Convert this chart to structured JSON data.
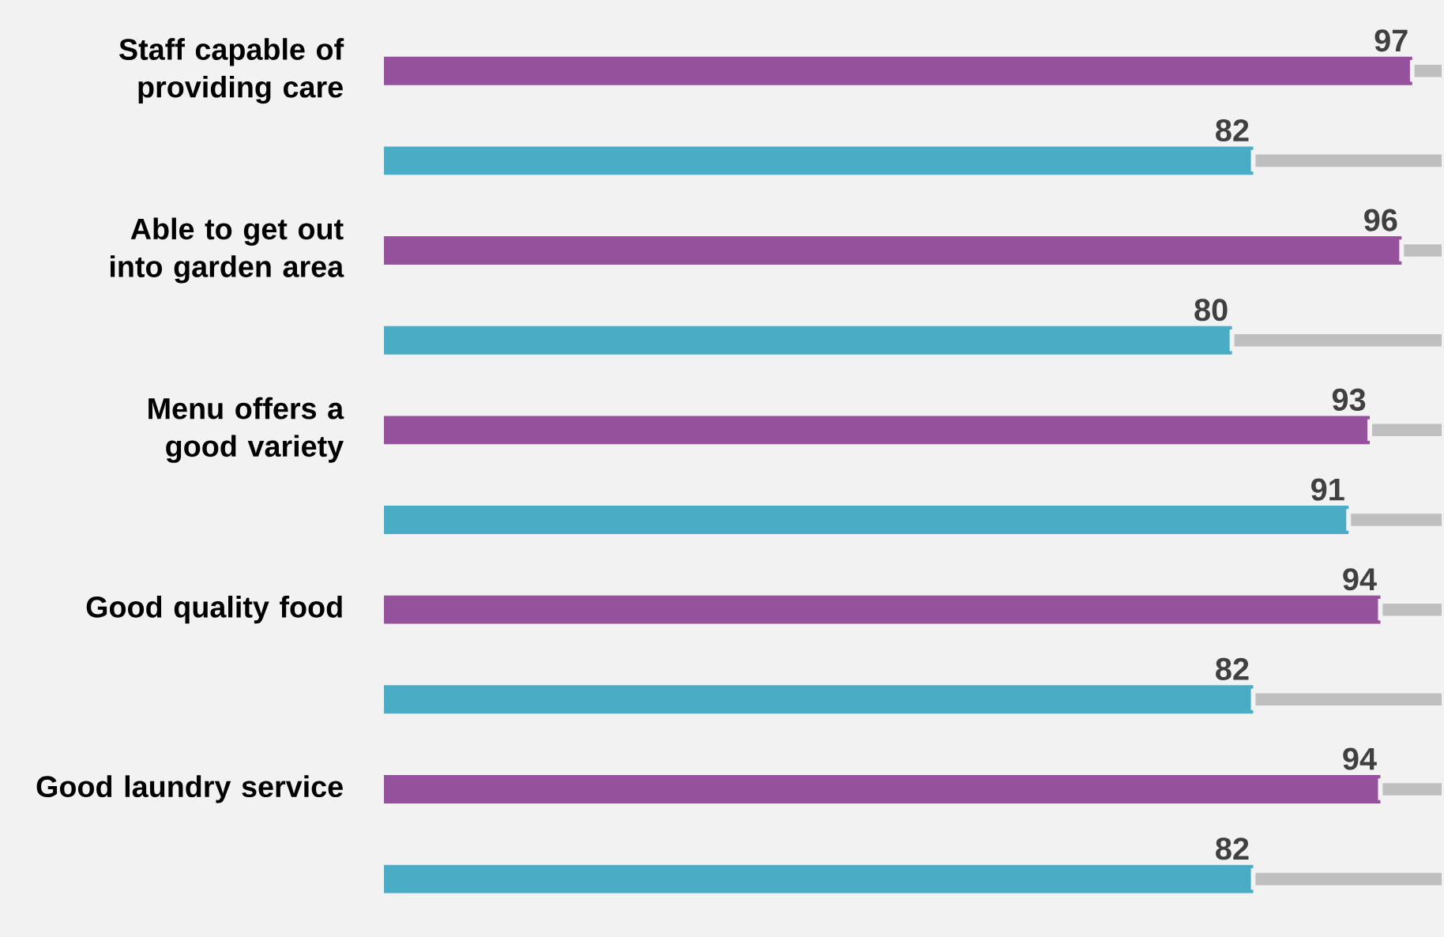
{
  "chart_data": {
    "type": "bar",
    "orientation": "horizontal",
    "stacked": true,
    "tick_labels": "y",
    "xlim": [
      0,
      100
    ],
    "categories": [
      "Staff capable of providing care",
      null,
      "Able to get out into garden area",
      null,
      "Menu offers a good variety",
      null,
      "Good quality food",
      null,
      "Good laundry service",
      null
    ],
    "series": [
      {
        "colors": [
          "#95519c",
          "#4bacc6",
          "#95519c",
          "#4bacc6",
          "#95519c",
          "#4bacc6",
          "#95519c",
          "#4bacc6",
          "#95519c",
          "#4bacc6"
        ],
        "values": [
          97,
          82,
          96,
          80,
          93,
          91,
          94,
          82,
          94,
          82
        ],
        "value_labels": [
          "97",
          "82",
          "96",
          "80",
          "93",
          "91",
          "94",
          "82",
          "94",
          "82"
        ]
      },
      {
        "color": "#bfbfbf",
        "values": [
          3,
          18,
          4,
          20,
          7,
          9,
          6,
          18,
          6,
          18
        ]
      }
    ]
  }
}
